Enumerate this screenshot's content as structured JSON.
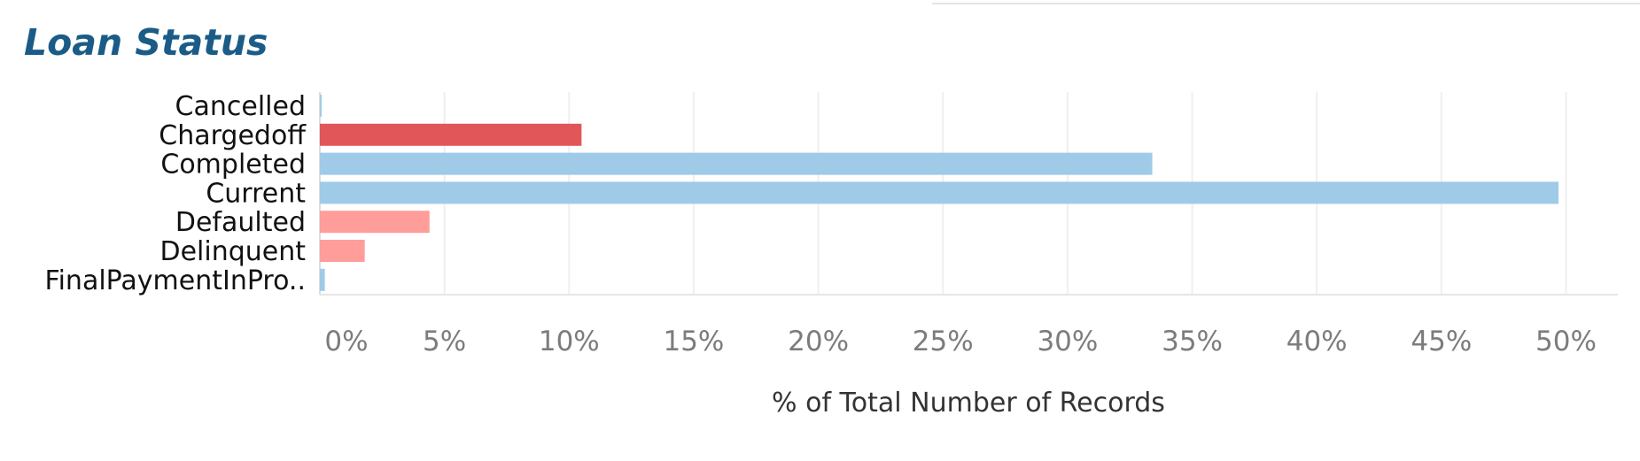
{
  "chart_data": {
    "type": "bar",
    "orientation": "horizontal",
    "title": "Loan Status",
    "xlabel": "% of Total Number of Records",
    "ylabel": "",
    "categories": [
      "Cancelled",
      "Chargedoff",
      "Completed",
      "Current",
      "Defaulted",
      "Delinquent",
      "FinalPaymentInPro.."
    ],
    "values": [
      0.01,
      10.5,
      33.4,
      49.7,
      4.4,
      1.8,
      0.2
    ],
    "colors": [
      "#9fcae8",
      "#e15759",
      "#9fcae8",
      "#9fcae8",
      "#ff9d9a",
      "#ff9d9a",
      "#9fcae8"
    ],
    "xlim": [
      0,
      52
    ],
    "xticks": [
      0,
      5,
      10,
      15,
      20,
      25,
      30,
      35,
      40,
      45,
      50
    ],
    "xtick_labels": [
      "0%",
      "5%",
      "10%",
      "15%",
      "20%",
      "25%",
      "30%",
      "35%",
      "40%",
      "45%",
      "50%"
    ],
    "grid": true
  }
}
